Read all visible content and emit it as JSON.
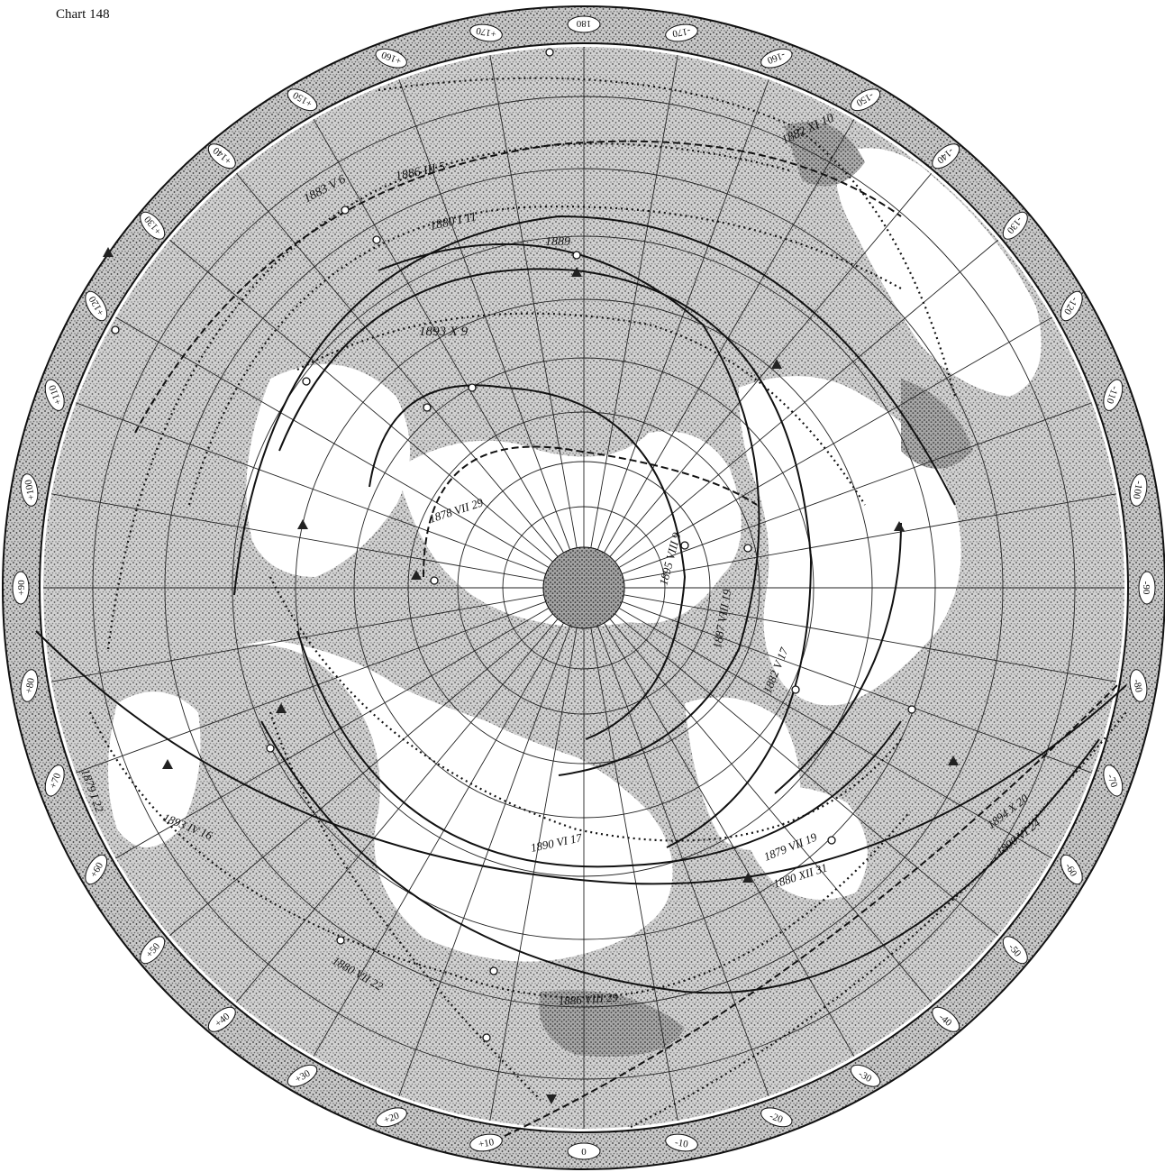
{
  "chart_label": "Chart 148",
  "ring_ticks": [
    "0",
    "+10",
    "+20",
    "+30",
    "+40",
    "+50",
    "+60",
    "+70",
    "+80",
    "+90",
    "+100",
    "+110",
    "+120",
    "+130",
    "+140",
    "+150",
    "+160",
    "+170",
    "180",
    "-170",
    "-160",
    "-150",
    "-140",
    "-130",
    "-120",
    "-110",
    "-100",
    "-90",
    "-80",
    "-70",
    "-60",
    "-50",
    "-40",
    "-30",
    "-20",
    "-10"
  ],
  "tracks": [
    {
      "id": "t-1893-x-9",
      "label": "1893 X 9",
      "style": "dotted"
    },
    {
      "id": "t-1883-v-6",
      "label": "1883 V 6",
      "style": "dotted"
    },
    {
      "id": "t-1886-iii-5",
      "label": "1886 III 5",
      "style": "dashed"
    },
    {
      "id": "t-1880-i-11",
      "label": "1880 I 11",
      "style": "dotted"
    },
    {
      "id": "t-1889",
      "label": "1889",
      "style": "solid"
    },
    {
      "id": "t-1882-xi-10",
      "label": "1882 XI 10",
      "style": "dotted"
    },
    {
      "id": "t-1878-vii-29",
      "label": "1878 VII 29",
      "style": "dashed"
    },
    {
      "id": "t-1895-viii-9",
      "label": "1895 VIII 9",
      "style": "solid"
    },
    {
      "id": "t-1887-viii-19",
      "label": "1887 VIII 19",
      "style": "solid"
    },
    {
      "id": "t-1882-v-17",
      "label": "1882 V 17",
      "style": "solid"
    },
    {
      "id": "t-1890-vi-17",
      "label": "1890 VI 17",
      "style": "dotted"
    },
    {
      "id": "t-1879-vii-19",
      "label": "1879 VII 19",
      "style": "solid"
    },
    {
      "id": "t-1893-iv-16",
      "label": "1893 IV 16",
      "style": "solid"
    },
    {
      "id": "t-1886-viii-29",
      "label": "1886 VIII 29",
      "style": "solid"
    },
    {
      "id": "t-1879-i-22",
      "label": "1879 I 22",
      "style": "dotted"
    },
    {
      "id": "t-1880-vii-22",
      "label": "1880 VII 22",
      "style": "dotted"
    },
    {
      "id": "t-1894-x-20",
      "label": "1894 X 20",
      "style": "dashed"
    },
    {
      "id": "t-1890-vi-24",
      "label": "1890 VI 24",
      "style": "dotted"
    },
    {
      "id": "t-1880-xii-31",
      "label": "1880 XII 31",
      "style": "solid"
    }
  ]
}
